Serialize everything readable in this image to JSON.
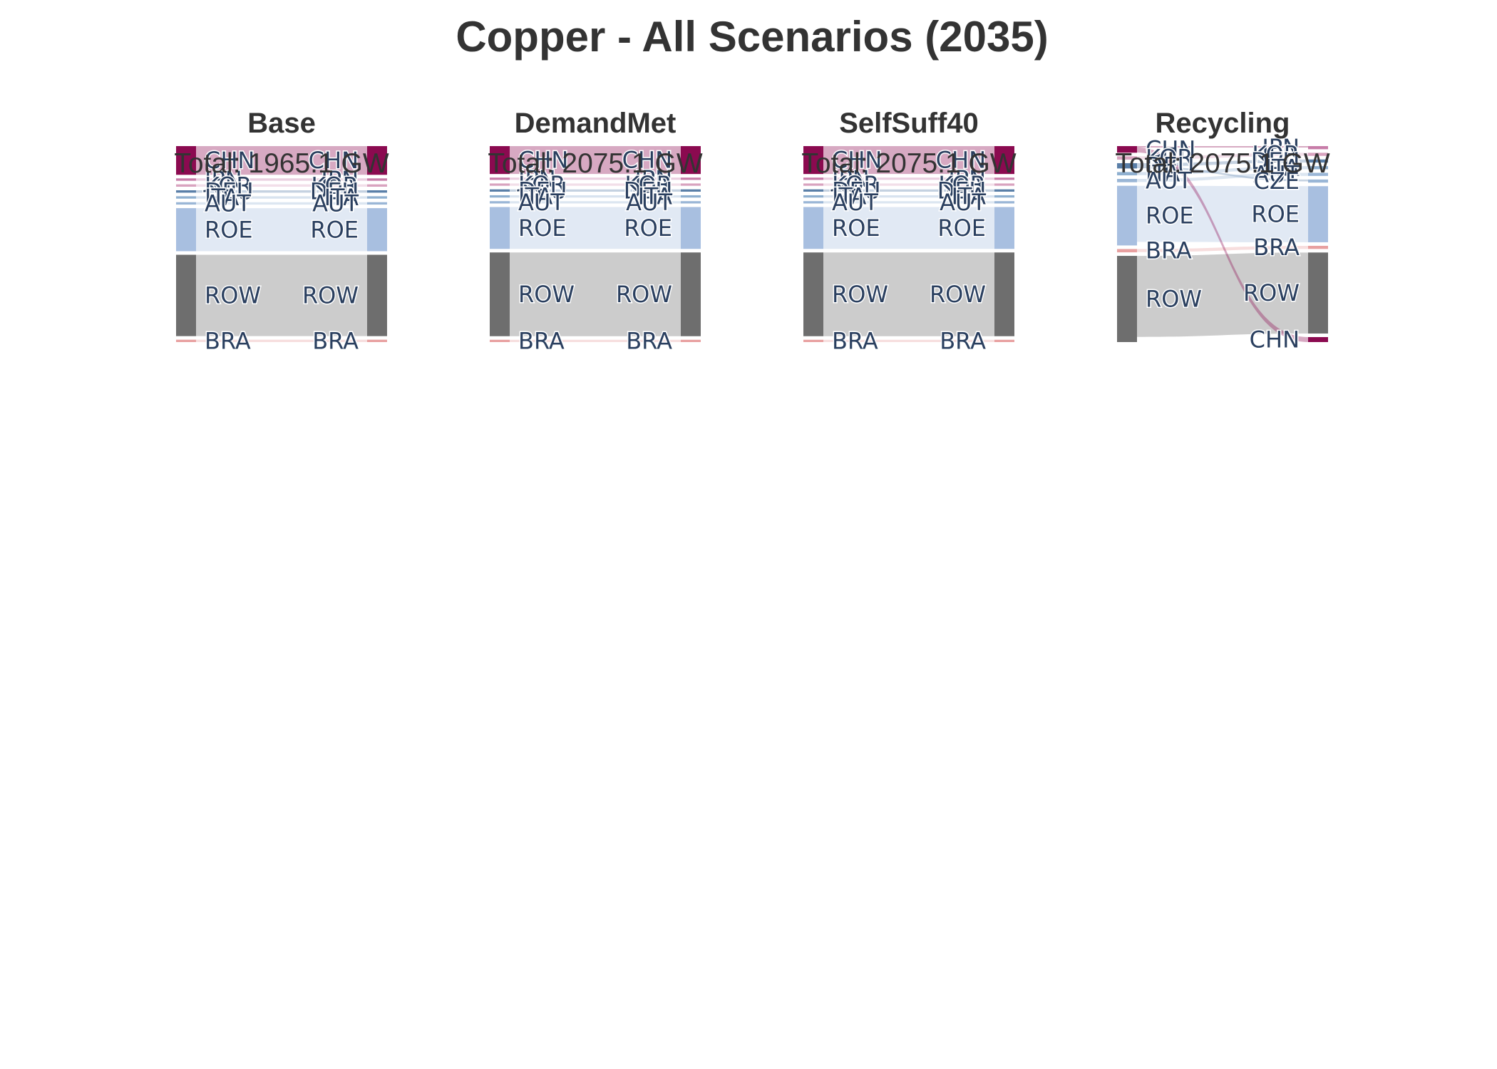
{
  "chart_data": {
    "type": "sankey",
    "title": "Copper - All Scenarios (2035)",
    "colors": {
      "CHN": "#8b0a50",
      "JPN": "#c77ca8",
      "KOR": "#d9a3bf",
      "DEU": "#5a7fa8",
      "ITA": "#8fb0d0",
      "AUT": "#9ab6d6",
      "CZE": "#9ab6d6",
      "ROE": "#a8bfe0",
      "ROW": "#6e6e6e",
      "BRA": "#e8a0a0"
    },
    "panels": [
      {
        "name": "Base",
        "total_label": "Total: 1965.1 GW",
        "source_nodes": [
          {
            "id": "CHN",
            "label": "CHN",
            "value": 60
          },
          {
            "id": "JPN",
            "label": "JPN",
            "value": 5
          },
          {
            "id": "KOR",
            "label": "KOR",
            "value": 5
          },
          {
            "id": "DEU",
            "label": "DEU",
            "value": 5
          },
          {
            "id": "ITA",
            "label": "ITA",
            "value": 5
          },
          {
            "id": "AUT",
            "label": "AUT",
            "value": 5
          },
          {
            "id": "ROE",
            "label": "ROE",
            "value": 90
          },
          {
            "id": "ROW",
            "label": "ROW",
            "value": 170
          },
          {
            "id": "BRA",
            "label": "BRA",
            "value": 5
          }
        ],
        "target_nodes": [
          {
            "id": "CHN",
            "label": "CHN",
            "value": 60
          },
          {
            "id": "JPN",
            "label": "JPN",
            "value": 5
          },
          {
            "id": "KOR",
            "label": "KOR",
            "value": 5
          },
          {
            "id": "DEU",
            "label": "DEU",
            "value": 5
          },
          {
            "id": "ITA",
            "label": "ITA",
            "value": 5
          },
          {
            "id": "AUT",
            "label": "AUT",
            "value": 5
          },
          {
            "id": "ROE",
            "label": "ROE",
            "value": 90
          },
          {
            "id": "ROW",
            "label": "ROW",
            "value": 170
          },
          {
            "id": "BRA",
            "label": "BRA",
            "value": 5
          }
        ],
        "links": [
          {
            "source": "CHN",
            "target": "CHN",
            "value": 60
          },
          {
            "source": "JPN",
            "target": "JPN",
            "value": 5
          },
          {
            "source": "KOR",
            "target": "KOR",
            "value": 5
          },
          {
            "source": "DEU",
            "target": "DEU",
            "value": 5
          },
          {
            "source": "ITA",
            "target": "ITA",
            "value": 5
          },
          {
            "source": "AUT",
            "target": "AUT",
            "value": 5
          },
          {
            "source": "ROE",
            "target": "ROE",
            "value": 90
          },
          {
            "source": "ROW",
            "target": "ROW",
            "value": 170
          },
          {
            "source": "BRA",
            "target": "BRA",
            "value": 5
          }
        ]
      },
      {
        "name": "DemandMet",
        "total_label": "Total: 2075.1 GW",
        "source_nodes": [
          {
            "id": "CHN",
            "label": "CHN",
            "value": 60
          },
          {
            "id": "JPN",
            "label": "JPN",
            "value": 5
          },
          {
            "id": "KOR",
            "label": "KOR",
            "value": 5
          },
          {
            "id": "DEU",
            "label": "DEU",
            "value": 5
          },
          {
            "id": "ITA",
            "label": "ITA",
            "value": 5
          },
          {
            "id": "AUT",
            "label": "AUT",
            "value": 5
          },
          {
            "id": "ROE",
            "label": "ROE",
            "value": 90
          },
          {
            "id": "ROW",
            "label": "ROW",
            "value": 180
          },
          {
            "id": "BRA",
            "label": "BRA",
            "value": 5
          }
        ],
        "target_nodes": [
          {
            "id": "CHN",
            "label": "CHN",
            "value": 60
          },
          {
            "id": "JPN",
            "label": "JPN",
            "value": 5
          },
          {
            "id": "KOR",
            "label": "KOR",
            "value": 5
          },
          {
            "id": "DEU",
            "label": "DEU",
            "value": 5
          },
          {
            "id": "ITA",
            "label": "ITA",
            "value": 5
          },
          {
            "id": "AUT",
            "label": "AUT",
            "value": 5
          },
          {
            "id": "ROE",
            "label": "ROE",
            "value": 90
          },
          {
            "id": "ROW",
            "label": "ROW",
            "value": 180
          },
          {
            "id": "BRA",
            "label": "BRA",
            "value": 5
          }
        ],
        "links": [
          {
            "source": "CHN",
            "target": "CHN",
            "value": 60
          },
          {
            "source": "JPN",
            "target": "JPN",
            "value": 5
          },
          {
            "source": "KOR",
            "target": "KOR",
            "value": 5
          },
          {
            "source": "DEU",
            "target": "DEU",
            "value": 5
          },
          {
            "source": "ITA",
            "target": "ITA",
            "value": 5
          },
          {
            "source": "AUT",
            "target": "AUT",
            "value": 5
          },
          {
            "source": "ROE",
            "target": "ROE",
            "value": 90
          },
          {
            "source": "ROW",
            "target": "ROW",
            "value": 180
          },
          {
            "source": "BRA",
            "target": "BRA",
            "value": 5
          }
        ]
      },
      {
        "name": "SelfSuff40",
        "total_label": "Total: 2075.1 GW",
        "source_nodes": [
          {
            "id": "CHN",
            "label": "CHN",
            "value": 60
          },
          {
            "id": "JPN",
            "label": "JPN",
            "value": 5
          },
          {
            "id": "KOR",
            "label": "KOR",
            "value": 5
          },
          {
            "id": "DEU",
            "label": "DEU",
            "value": 5
          },
          {
            "id": "ITA",
            "label": "ITA",
            "value": 5
          },
          {
            "id": "AUT",
            "label": "AUT",
            "value": 5
          },
          {
            "id": "ROE",
            "label": "ROE",
            "value": 90
          },
          {
            "id": "ROW",
            "label": "ROW",
            "value": 180
          },
          {
            "id": "BRA",
            "label": "BRA",
            "value": 5
          }
        ],
        "target_nodes": [
          {
            "id": "CHN",
            "label": "CHN",
            "value": 60
          },
          {
            "id": "JPN",
            "label": "JPN",
            "value": 5
          },
          {
            "id": "KOR",
            "label": "KOR",
            "value": 5
          },
          {
            "id": "DEU",
            "label": "DEU",
            "value": 5
          },
          {
            "id": "ITA",
            "label": "ITA",
            "value": 5
          },
          {
            "id": "AUT",
            "label": "AUT",
            "value": 5
          },
          {
            "id": "ROE",
            "label": "ROE",
            "value": 90
          },
          {
            "id": "ROW",
            "label": "ROW",
            "value": 180
          },
          {
            "id": "BRA",
            "label": "BRA",
            "value": 5
          }
        ],
        "links": [
          {
            "source": "CHN",
            "target": "CHN",
            "value": 60
          },
          {
            "source": "JPN",
            "target": "JPN",
            "value": 5
          },
          {
            "source": "KOR",
            "target": "KOR",
            "value": 5
          },
          {
            "source": "DEU",
            "target": "DEU",
            "value": 5
          },
          {
            "source": "ITA",
            "target": "ITA",
            "value": 5
          },
          {
            "source": "AUT",
            "target": "AUT",
            "value": 5
          },
          {
            "source": "ROE",
            "target": "ROE",
            "value": 90
          },
          {
            "source": "ROW",
            "target": "ROW",
            "value": 180
          },
          {
            "source": "BRA",
            "target": "BRA",
            "value": 5
          }
        ]
      },
      {
        "name": "Recycling",
        "total_label": "Total: 2075.1 GW",
        "source_nodes": [
          {
            "id": "CHN",
            "label": "CHN",
            "value": 10
          },
          {
            "id": "KOR",
            "label": "KOR",
            "value": 5
          },
          {
            "id": "DEU",
            "label": "DEU",
            "value": 8
          },
          {
            "id": "ITA",
            "label": "ITA",
            "value": 5
          },
          {
            "id": "AUT",
            "label": "AUT",
            "value": 5
          },
          {
            "id": "ROE",
            "label": "ROE",
            "value": 90
          },
          {
            "id": "BRA",
            "label": "BRA",
            "value": 5
          },
          {
            "id": "ROW",
            "label": "ROW",
            "value": 130
          }
        ],
        "target_nodes": [
          {
            "id": "JPN",
            "label": "JPN",
            "value": 5
          },
          {
            "id": "KOR",
            "label": "KOR",
            "value": 5
          },
          {
            "id": "DEU",
            "label": "DEU",
            "value": 5
          },
          {
            "id": "ITA",
            "label": "ITA",
            "value": 5
          },
          {
            "id": "AUT",
            "label": "AUT",
            "value": 5
          },
          {
            "id": "CZE",
            "label": "CZE",
            "value": 5
          },
          {
            "id": "ROE",
            "label": "ROE",
            "value": 90
          },
          {
            "id": "BRA",
            "label": "BRA",
            "value": 5
          },
          {
            "id": "ROW",
            "label": "ROW",
            "value": 130
          },
          {
            "id": "CHN",
            "label": "CHN",
            "value": 8
          }
        ],
        "links": [
          {
            "source": "CHN",
            "target": "JPN",
            "value": 2
          },
          {
            "source": "KOR",
            "target": "KOR",
            "value": 5
          },
          {
            "source": "DEU",
            "target": "DEU",
            "value": 5
          },
          {
            "source": "DEU",
            "target": "CZE",
            "value": 3
          },
          {
            "source": "ITA",
            "target": "ITA",
            "value": 5
          },
          {
            "source": "AUT",
            "target": "AUT",
            "value": 5
          },
          {
            "source": "ROE",
            "target": "ROE",
            "value": 90
          },
          {
            "source": "BRA",
            "target": "BRA",
            "value": 5
          },
          {
            "source": "ROW",
            "target": "ROW",
            "value": 130
          },
          {
            "source": "CHN",
            "target": "CHN",
            "value": 8
          }
        ]
      }
    ]
  }
}
